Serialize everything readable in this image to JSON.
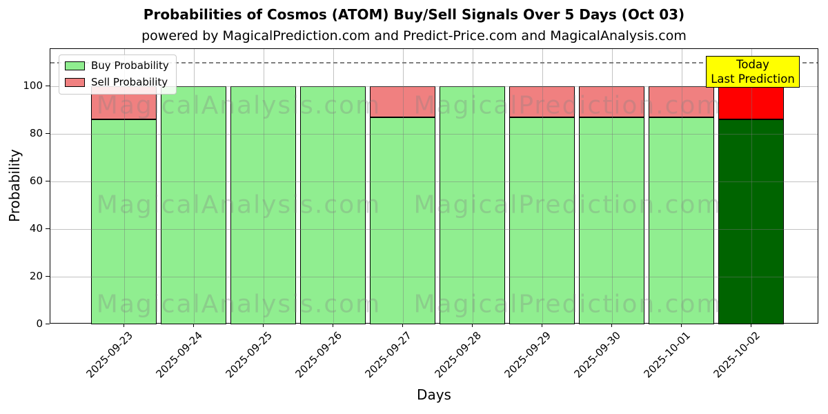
{
  "chart_data": {
    "type": "bar",
    "stacked": true,
    "title": "Probabilities of Cosmos (ATOM) Buy/Sell Signals Over 5 Days (Oct 03)",
    "subtitle": "powered by MagicalPrediction.com and Predict-Price.com and MagicalAnalysis.com",
    "xlabel": "Days",
    "ylabel": "Probability",
    "categories": [
      "2025-09-23",
      "2025-09-24",
      "2025-09-25",
      "2025-09-26",
      "2025-09-27",
      "2025-09-28",
      "2025-09-29",
      "2025-09-30",
      "2025-10-01",
      "2025-10-02"
    ],
    "series": [
      {
        "name": "Buy Probability",
        "color": "#90EE90",
        "today_color": "#006400",
        "values": [
          86,
          100,
          100,
          100,
          87,
          100,
          87,
          87,
          87,
          86
        ]
      },
      {
        "name": "Sell Probability",
        "color": "#F08080",
        "today_color": "#FF0000",
        "values": [
          14,
          0,
          0,
          0,
          13,
          0,
          13,
          13,
          13,
          14
        ]
      }
    ],
    "today_index": 9,
    "ylim": [
      0,
      115.6
    ],
    "yticks": [
      0,
      20,
      40,
      60,
      80,
      100
    ],
    "dashed_line_y": 110,
    "grid": true,
    "legend_position": "upper left",
    "annotation": {
      "lines": [
        "Today",
        "Last Prediction"
      ],
      "bg_color": "#FFFF00"
    },
    "watermarks": {
      "left": "MagicalAnalysis.com",
      "right": "MagicalPrediction.com"
    },
    "edge_color": "#000000"
  }
}
